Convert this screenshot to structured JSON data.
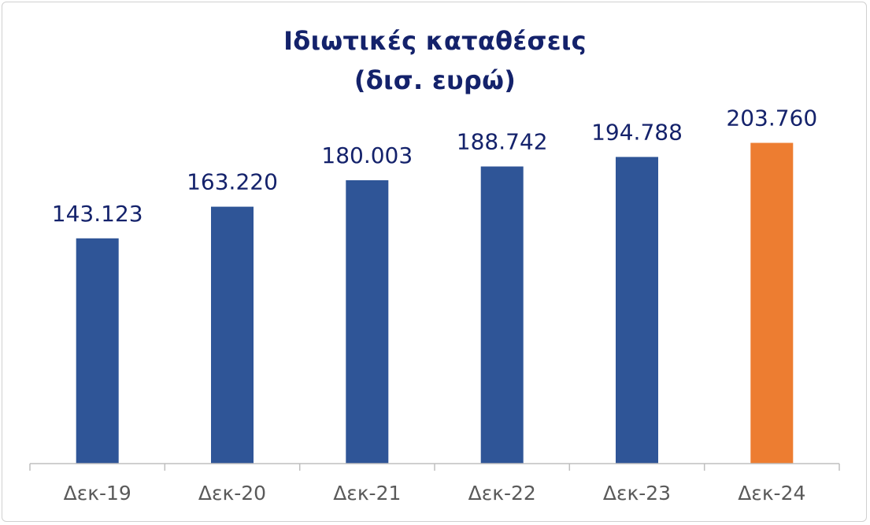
{
  "chart_data": {
    "type": "bar",
    "title": "Ιδιωτικές καταθέσεις",
    "subtitle": "(δισ. ευρώ)",
    "categories": [
      "Δεκ-19",
      "Δεκ-20",
      "Δεκ-21",
      "Δεκ-22",
      "Δεκ-23",
      "Δεκ-24"
    ],
    "values": [
      143123,
      163220,
      180003,
      188742,
      194788,
      203760
    ],
    "value_labels": [
      "143.123",
      "163.220",
      "180.003",
      "188.742",
      "194.788",
      "203.760"
    ],
    "ylim": [
      0,
      210000
    ],
    "grid": false,
    "legend": "none",
    "colors": {
      "bar": "#2f5597",
      "highlight_bar": "#ed7d31",
      "title": "#14226b",
      "axis": "#bfbfbf",
      "tick_text": "#5a5a5a"
    },
    "highlight_index": 5
  }
}
